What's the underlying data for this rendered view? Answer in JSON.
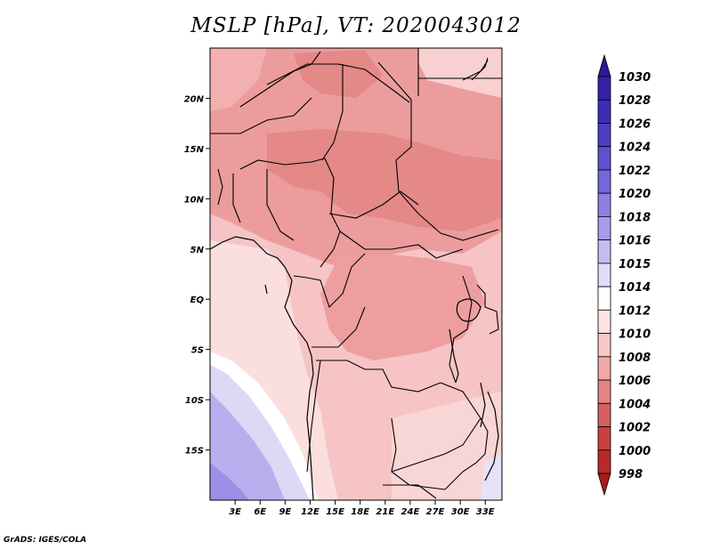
{
  "title": "MSLP [hPa], VT: 2020043012",
  "footer": "GrADS: IGES/COLA",
  "map": {
    "lon_range": [
      0,
      35
    ],
    "lat_range": [
      -20,
      25
    ],
    "x_ticks": [
      {
        "value": 3,
        "label": "3E"
      },
      {
        "value": 6,
        "label": "6E"
      },
      {
        "value": 9,
        "label": "9E"
      },
      {
        "value": 12,
        "label": "12E"
      },
      {
        "value": 15,
        "label": "15E"
      },
      {
        "value": 18,
        "label": "18E"
      },
      {
        "value": 21,
        "label": "21E"
      },
      {
        "value": 24,
        "label": "24E"
      },
      {
        "value": 27,
        "label": "27E"
      },
      {
        "value": 30,
        "label": "30E"
      },
      {
        "value": 33,
        "label": "33E"
      }
    ],
    "y_ticks": [
      {
        "value": 20,
        "label": "20N"
      },
      {
        "value": 15,
        "label": "15N"
      },
      {
        "value": 10,
        "label": "10N"
      },
      {
        "value": 5,
        "label": "5N"
      },
      {
        "value": 0,
        "label": "EQ"
      },
      {
        "value": -5,
        "label": "5S"
      },
      {
        "value": -10,
        "label": "10S"
      },
      {
        "value": -15,
        "label": "15S"
      }
    ]
  },
  "colorbar": {
    "levels": [
      "1030",
      "1028",
      "1026",
      "1024",
      "1022",
      "1020",
      "1018",
      "1016",
      "1015",
      "1014",
      "1012",
      "1010",
      "1008",
      "1006",
      "1004",
      "1002",
      "1000",
      "998"
    ],
    "colors": [
      "#2a1a9a",
      "#3322a8",
      "#3d2cb8",
      "#4d3dc4",
      "#5f50d0",
      "#7466dc",
      "#8c80e4",
      "#a59dec",
      "#c3bdf2",
      "#e0ddf8",
      "#ffffff",
      "#fde4e4",
      "#f8c8c8",
      "#f0a8a8",
      "#e48484",
      "#d66060",
      "#c84040",
      "#b82a2a",
      "#a61c1c"
    ]
  }
}
